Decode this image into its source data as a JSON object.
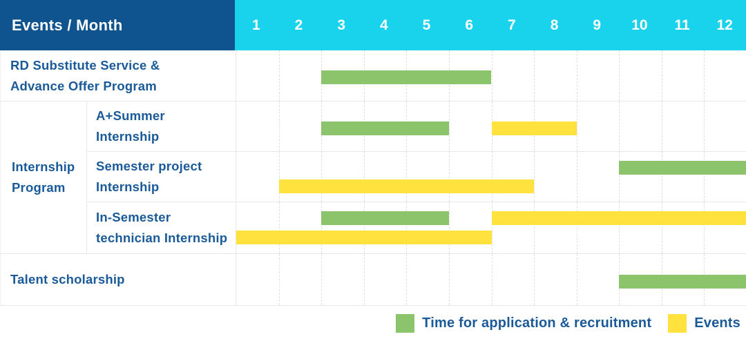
{
  "header": {
    "title": "Events / Month",
    "months": [
      "1",
      "2",
      "3",
      "4",
      "5",
      "6",
      "7",
      "8",
      "9",
      "10",
      "11",
      "12"
    ]
  },
  "colors": {
    "header_bg": "#0F538F",
    "months_bg": "#19D3ED",
    "label_text": "#1A5A99",
    "green": "#8BC46A",
    "yellow": "#FFE23E"
  },
  "group_label": "Internship\nProgram",
  "chart_data": {
    "type": "gantt",
    "unit": "month",
    "axis_months": [
      1,
      2,
      3,
      4,
      5,
      6,
      7,
      8,
      9,
      10,
      11,
      12
    ],
    "legend": [
      {
        "key": "green",
        "label": "Time for application & recruitment"
      },
      {
        "key": "yellow",
        "label": "Events"
      }
    ],
    "rows": [
      {
        "label": "RD Substitute Service &\nAdvance Offer Program",
        "group": null,
        "bars": [
          {
            "color": "green",
            "kind": "application",
            "start": 3,
            "end": 6,
            "lane": "single"
          }
        ]
      },
      {
        "label": "A+Summer\nInternship",
        "group": "Internship Program",
        "bars": [
          {
            "color": "green",
            "kind": "application",
            "start": 3,
            "end": 5,
            "lane": "single"
          },
          {
            "color": "yellow",
            "kind": "events",
            "start": 7,
            "end": 8,
            "lane": "single"
          }
        ]
      },
      {
        "label": "Semester project\nInternship",
        "group": "Internship Program",
        "bars": [
          {
            "color": "green",
            "kind": "application",
            "start": 10,
            "end": 12,
            "lane": "top"
          },
          {
            "color": "yellow",
            "kind": "events",
            "start": 2,
            "end": 7,
            "lane": "bottom"
          }
        ]
      },
      {
        "label": "In-Semester\ntechnician Internship",
        "group": "Internship Program",
        "bars": [
          {
            "color": "green",
            "kind": "application",
            "start": 3,
            "end": 5,
            "lane": "top"
          },
          {
            "color": "yellow",
            "kind": "events",
            "start": 7,
            "end": 12,
            "lane": "top"
          },
          {
            "color": "yellow",
            "kind": "events",
            "start": 1,
            "end": 6,
            "lane": "bottom"
          }
        ]
      },
      {
        "label": "Talent scholarship",
        "group": null,
        "bars": [
          {
            "color": "green",
            "kind": "application",
            "start": 10,
            "end": 12,
            "lane": "single"
          }
        ]
      }
    ]
  }
}
